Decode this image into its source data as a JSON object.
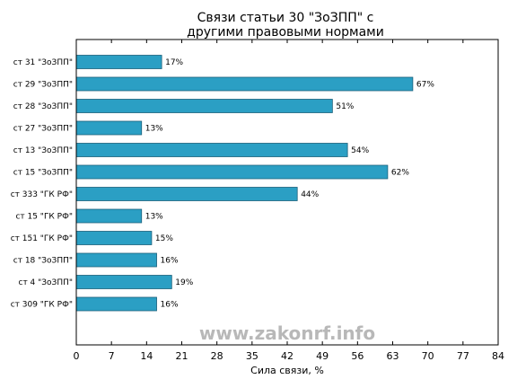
{
  "chart_data": {
    "type": "bar",
    "orientation": "horizontal",
    "title_lines": [
      "Связи статьи 30 \"ЗоЗПП\" с",
      "другими правовыми нормами"
    ],
    "xlabel": "Сила связи, %",
    "xlim": [
      0,
      84
    ],
    "xticks": [
      0,
      7,
      14,
      21,
      28,
      35,
      42,
      49,
      56,
      63,
      70,
      77,
      84
    ],
    "value_suffix": "%",
    "bar_color": "#2b9fc4",
    "categories": [
      "ст 31 \"ЗоЗПП\"",
      "ст 29 \"ЗоЗПП\"",
      "ст 28 \"ЗоЗПП\"",
      "ст 27 \"ЗоЗПП\"",
      "ст 13 \"ЗоЗПП\"",
      "ст 15 \"ЗоЗПП\"",
      "ст 333 \"ГК РФ\"",
      "ст 15 \"ГК РФ\"",
      "ст 151 \"ГК РФ\"",
      "ст 18 \"ЗоЗПП\"",
      "ст 4 \"ЗоЗПП\"",
      "ст 309 \"ГК РФ\""
    ],
    "values": [
      17,
      67,
      51,
      13,
      54,
      62,
      44,
      13,
      15,
      16,
      19,
      16
    ],
    "grid": false,
    "legend": "none"
  },
  "watermark": "www.zakonrf.info"
}
